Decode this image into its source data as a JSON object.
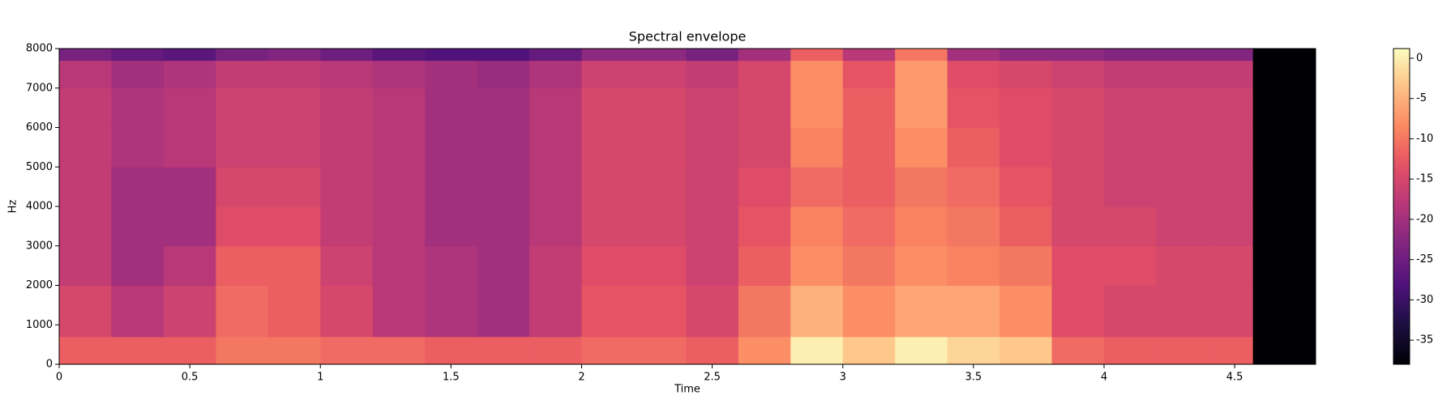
{
  "chart_data": {
    "type": "heatmap",
    "title": "Spectral envelope",
    "xlabel": "Time",
    "ylabel": "Hz",
    "colormap": "magma",
    "xlim": [
      0,
      4.81
    ],
    "xticks": [
      0,
      0.5,
      1,
      1.5,
      2,
      2.5,
      3,
      3.5,
      4,
      4.5
    ],
    "ylim": [
      0,
      8000
    ],
    "yticks": [
      0,
      1000,
      2000,
      3000,
      4000,
      5000,
      6000,
      7000,
      8000
    ],
    "clim": [
      -38,
      1.2
    ],
    "cticks": [
      0,
      -5,
      -10,
      -15,
      -20,
      -25,
      -30,
      -35
    ],
    "x_edges": [
      0,
      0.2,
      0.4,
      0.6,
      0.8,
      1,
      1.2,
      1.4,
      1.6,
      1.8,
      2,
      2.2,
      2.4,
      2.6,
      2.8,
      3,
      3.2,
      3.4,
      3.6,
      3.8,
      4,
      4.2,
      4.4,
      4.57,
      4.81
    ],
    "y_edges": [
      0,
      700,
      2000,
      3000,
      4000,
      5000,
      6000,
      7000,
      7700,
      8000
    ],
    "z": [
      [
        -12,
        -15,
        -17,
        -17,
        -17,
        -17,
        -17,
        -18,
        -24
      ],
      [
        -12,
        -18,
        -20,
        -20,
        -20,
        -19,
        -19,
        -20,
        -26
      ],
      [
        -12,
        -16,
        -18,
        -20,
        -20,
        -18,
        -18,
        -19,
        -27
      ],
      [
        -10,
        -11,
        -12,
        -14,
        -15,
        -16,
        -16,
        -17,
        -24
      ],
      [
        -10,
        -12,
        -12,
        -14,
        -15,
        -16,
        -16,
        -17,
        -23
      ],
      [
        -11,
        -15,
        -16,
        -17,
        -17,
        -17,
        -17,
        -18,
        -25
      ],
      [
        -11,
        -18,
        -18,
        -18,
        -18,
        -18,
        -18,
        -19,
        -27
      ],
      [
        -12,
        -19,
        -19,
        -20,
        -20,
        -20,
        -20,
        -20,
        -28
      ],
      [
        -12,
        -20,
        -20,
        -20,
        -20,
        -20,
        -20,
        -21,
        -28
      ],
      [
        -12,
        -17,
        -17,
        -18,
        -18,
        -18,
        -18,
        -19,
        -26
      ],
      [
        -11,
        -13,
        -14,
        -15,
        -15,
        -15,
        -15,
        -16,
        -22
      ],
      [
        -11,
        -13,
        -14,
        -15,
        -15,
        -15,
        -15,
        -16,
        -22
      ],
      [
        -12,
        -15,
        -16,
        -16,
        -16,
        -16,
        -16,
        -17,
        -24
      ],
      [
        -8,
        -10,
        -12,
        -13,
        -14,
        -15,
        -15,
        -15,
        -20
      ],
      [
        0,
        -5,
        -8,
        -9,
        -11,
        -9,
        -8,
        -8,
        -12
      ],
      [
        -3,
        -8,
        -10,
        -11,
        -12,
        -12,
        -12,
        -13,
        -18
      ],
      [
        0,
        -6,
        -8,
        -9,
        -10,
        -8,
        -7,
        -7,
        -10
      ],
      [
        -2,
        -6,
        -9,
        -10,
        -11,
        -12,
        -13,
        -14,
        -20
      ],
      [
        -3,
        -8,
        -10,
        -12,
        -13,
        -14,
        -14,
        -15,
        -22
      ],
      [
        -11,
        -14,
        -14,
        -15,
        -15,
        -15,
        -15,
        -16,
        -22
      ],
      [
        -12,
        -15,
        -14,
        -15,
        -16,
        -16,
        -16,
        -17,
        -23
      ],
      [
        -12,
        -15,
        -15,
        -16,
        -16,
        -16,
        -16,
        -17,
        -23
      ],
      [
        -12,
        -15,
        -15,
        -16,
        -16,
        -16,
        -16,
        -17,
        -23
      ],
      [
        -38,
        -38,
        -38,
        -38,
        -38,
        -38,
        -38,
        -38,
        -38
      ]
    ]
  }
}
